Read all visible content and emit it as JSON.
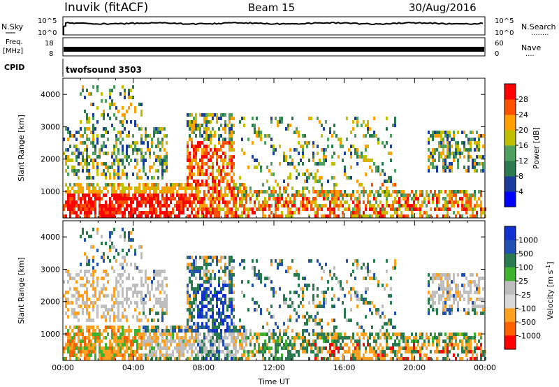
{
  "header": {
    "station": "Inuvik (fitACF)",
    "beam": "Beam 15",
    "date": "30/Aug/2016"
  },
  "status_panels": {
    "nsky_label": "N.Sky",
    "nsearch_label": "N.Search",
    "nsearch_dots": "........",
    "left_ticks": [
      "10^5",
      "10^0"
    ],
    "right_ticks": [
      "10^5",
      "10^0"
    ],
    "freq_label": "Freq.",
    "freq_unit": "[MHz]",
    "freq_ticks": [
      "18",
      "8"
    ],
    "nave_label": "Nave",
    "nave_dots": "....",
    "nave_ticks": [
      "60",
      "0"
    ],
    "cpid_label": "CPID",
    "cpid_value": "twofsound 3503"
  },
  "chart_data": [
    {
      "type": "heatmap",
      "name": "power",
      "ylabel": "Slant Range [km]",
      "xlabel": "",
      "yticks": [
        "1000",
        "2000",
        "3000",
        "4000"
      ],
      "ylim": [
        180,
        4500
      ],
      "xlim": [
        0,
        24
      ],
      "colorbar": {
        "label": "Power [dB]",
        "ticks": [
          "4",
          "8",
          "12",
          "16",
          "20",
          "24",
          "28"
        ],
        "range": [
          0,
          32
        ],
        "colors": [
          "#0000ff",
          "#1a3c9a",
          "#2a7a4e",
          "#4ea060",
          "#c0c000",
          "#ffa000",
          "#ff5000",
          "#ff0000"
        ]
      }
    },
    {
      "type": "heatmap",
      "name": "velocity",
      "ylabel": "Slant Range [km]",
      "xlabel": "Time UT",
      "xticks": [
        "00:00",
        "04:00",
        "08:00",
        "12:00",
        "16:00",
        "20:00",
        "00:00"
      ],
      "yticks": [
        "1000",
        "2000",
        "3000",
        "4000"
      ],
      "ylim": [
        180,
        4500
      ],
      "xlim": [
        0,
        24
      ],
      "colorbar": {
        "label": "Velocity [m s",
        "label_exp": "-1",
        "label_end": "]",
        "ticks": [
          "1000",
          "500",
          "100",
          "25",
          "-25",
          "-100",
          "-500",
          "-1000"
        ],
        "colors": [
          "#1030d0",
          "#2050b0",
          "#2a7a50",
          "#40b030",
          "#bebebe",
          "#d8d8d8",
          "#ffa020",
          "#ff6000",
          "#ff0000"
        ],
        "ground_scatter_color": "#bebebe"
      }
    }
  ]
}
